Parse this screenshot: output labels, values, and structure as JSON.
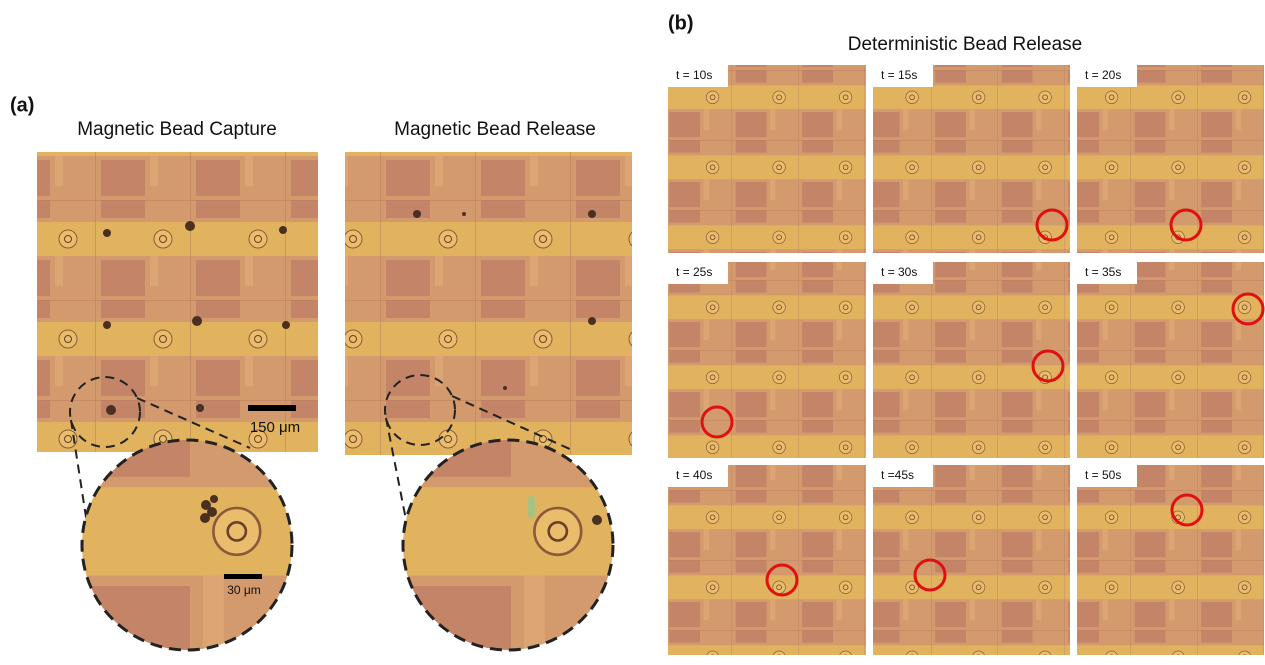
{
  "panel_a": {
    "label": "(a)",
    "images": [
      {
        "title": "Magnetic Bead Capture"
      },
      {
        "title": "Magnetic Bead Release"
      }
    ],
    "scale_bar_large": "150 μm",
    "scale_bar_zoom": "30 μm"
  },
  "panel_b": {
    "label": "(b)",
    "title": "Deterministic Bead Release",
    "frames": [
      {
        "label": "t = 10s"
      },
      {
        "label": "t = 15s"
      },
      {
        "label": "t = 20s"
      },
      {
        "label": "t = 25s"
      },
      {
        "label": "t = 30s"
      },
      {
        "label": "t = 35s"
      },
      {
        "label": "t = 40s"
      },
      {
        "label": "t =45s"
      },
      {
        "label": "t = 50s"
      }
    ]
  }
}
